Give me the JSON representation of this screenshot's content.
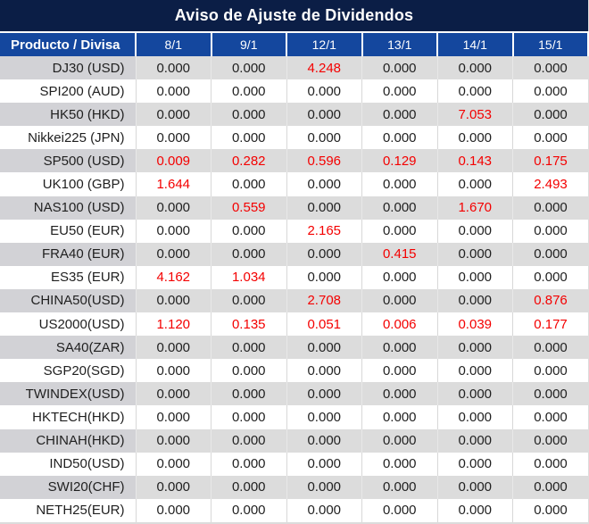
{
  "title": "Aviso de Ajuste de Dividendos",
  "table": {
    "product_header": "Producto / Divisa",
    "date_headers": [
      "8/1",
      "9/1",
      "12/1",
      "13/1",
      "14/1",
      "15/1"
    ],
    "rows": [
      {
        "product": "DJ30 (USD)",
        "values": [
          "0.000",
          "0.000",
          "4.248",
          "0.000",
          "0.000",
          "0.000"
        ]
      },
      {
        "product": "SPI200 (AUD)",
        "values": [
          "0.000",
          "0.000",
          "0.000",
          "0.000",
          "0.000",
          "0.000"
        ]
      },
      {
        "product": "HK50 (HKD)",
        "values": [
          "0.000",
          "0.000",
          "0.000",
          "0.000",
          "7.053",
          "0.000"
        ]
      },
      {
        "product": "Nikkei225 (JPN)",
        "values": [
          "0.000",
          "0.000",
          "0.000",
          "0.000",
          "0.000",
          "0.000"
        ]
      },
      {
        "product": "SP500 (USD)",
        "values": [
          "0.009",
          "0.282",
          "0.596",
          "0.129",
          "0.143",
          "0.175"
        ]
      },
      {
        "product": "UK100 (GBP)",
        "values": [
          "1.644",
          "0.000",
          "0.000",
          "0.000",
          "0.000",
          "2.493"
        ]
      },
      {
        "product": "NAS100 (USD)",
        "values": [
          "0.000",
          "0.559",
          "0.000",
          "0.000",
          "1.670",
          "0.000"
        ]
      },
      {
        "product": "EU50 (EUR)",
        "values": [
          "0.000",
          "0.000",
          "2.165",
          "0.000",
          "0.000",
          "0.000"
        ]
      },
      {
        "product": "FRA40 (EUR)",
        "values": [
          "0.000",
          "0.000",
          "0.000",
          "0.415",
          "0.000",
          "0.000"
        ]
      },
      {
        "product": "ES35 (EUR)",
        "values": [
          "4.162",
          "1.034",
          "0.000",
          "0.000",
          "0.000",
          "0.000"
        ]
      },
      {
        "product": "CHINA50(USD)",
        "values": [
          "0.000",
          "0.000",
          "2.708",
          "0.000",
          "0.000",
          "0.876"
        ]
      },
      {
        "product": "US2000(USD)",
        "values": [
          "1.120",
          "0.135",
          "0.051",
          "0.006",
          "0.039",
          "0.177"
        ]
      },
      {
        "product": "SA40(ZAR)",
        "values": [
          "0.000",
          "0.000",
          "0.000",
          "0.000",
          "0.000",
          "0.000"
        ]
      },
      {
        "product": "SGP20(SGD)",
        "values": [
          "0.000",
          "0.000",
          "0.000",
          "0.000",
          "0.000",
          "0.000"
        ]
      },
      {
        "product": "TWINDEX(USD)",
        "values": [
          "0.000",
          "0.000",
          "0.000",
          "0.000",
          "0.000",
          "0.000"
        ]
      },
      {
        "product": "HKTECH(HKD)",
        "values": [
          "0.000",
          "0.000",
          "0.000",
          "0.000",
          "0.000",
          "0.000"
        ]
      },
      {
        "product": "CHINAH(HKD)",
        "values": [
          "0.000",
          "0.000",
          "0.000",
          "0.000",
          "0.000",
          "0.000"
        ]
      },
      {
        "product": "IND50(USD)",
        "values": [
          "0.000",
          "0.000",
          "0.000",
          "0.000",
          "0.000",
          "0.000"
        ]
      },
      {
        "product": "SWI20(CHF)",
        "values": [
          "0.000",
          "0.000",
          "0.000",
          "0.000",
          "0.000",
          "0.000"
        ]
      },
      {
        "product": "NETH25(EUR)",
        "values": [
          "0.000",
          "0.000",
          "0.000",
          "0.000",
          "0.000",
          "0.000"
        ]
      }
    ]
  },
  "colors": {
    "title_bg": "#0b1e46",
    "header_bg": "#14479e",
    "header_text": "#ffffff",
    "row_gray": "#dcdcdc",
    "row_gray_product": "#d2d2d6",
    "row_white": "#ffffff",
    "text_dark": "#1f1f1f",
    "value_red": "#f40000",
    "zero_value": "0.000"
  }
}
